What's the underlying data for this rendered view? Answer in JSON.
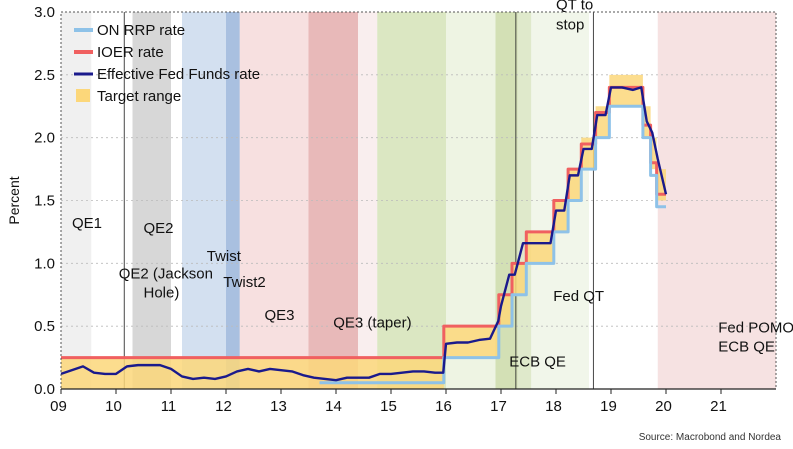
{
  "chart_data": {
    "type": "line",
    "ylabel": "Percent",
    "ylim": [
      0,
      3.0
    ],
    "yticks": [
      "0.0",
      "0.5",
      "1.0",
      "1.5",
      "2.0",
      "2.5",
      "3.0"
    ],
    "xlim": [
      2009,
      2022
    ],
    "xticks": [
      {
        "x": 2009,
        "label": "09"
      },
      {
        "x": 2010,
        "label": "10"
      },
      {
        "x": 2011,
        "label": "11"
      },
      {
        "x": 2012,
        "label": "12"
      },
      {
        "x": 2013,
        "label": "13"
      },
      {
        "x": 2014,
        "label": "14"
      },
      {
        "x": 2015,
        "label": "15"
      },
      {
        "x": 2016,
        "label": "16"
      },
      {
        "x": 2017,
        "label": "17"
      },
      {
        "x": 2018,
        "label": "18"
      },
      {
        "x": 2019,
        "label": "19"
      },
      {
        "x": 2020,
        "label": "20"
      },
      {
        "x": 2021,
        "label": "21"
      }
    ],
    "legend": [
      {
        "name": "ON RRP rate",
        "color": "#8ec2e8",
        "kind": "line"
      },
      {
        "name": "IOER rate",
        "color": "#f06060",
        "kind": "line"
      },
      {
        "name": "Effective Fed Funds rate",
        "color": "#1a1a8c",
        "kind": "line"
      },
      {
        "name": "Target range",
        "color": "#fcd77a",
        "kind": "area"
      }
    ],
    "legend_position": "top-left",
    "regions": [
      {
        "x0": 2009.0,
        "x1": 2009.55,
        "color": "#e6e6e6",
        "opacity": 0.6
      },
      {
        "x0": 2010.3,
        "x1": 2011.0,
        "color": "#bdbdbd",
        "opacity": 0.6
      },
      {
        "x0": 2011.2,
        "x1": 2012.0,
        "color": "#b6cce6",
        "opacity": 0.6
      },
      {
        "x0": 2012.0,
        "x1": 2012.25,
        "color": "#6f96cc",
        "opacity": 0.6
      },
      {
        "x0": 2012.25,
        "x1": 2013.5,
        "color": "#f2cccc",
        "opacity": 0.6
      },
      {
        "x0": 2013.5,
        "x1": 2014.4,
        "color": "#d98a8a",
        "opacity": 0.6
      },
      {
        "x0": 2014.4,
        "x1": 2014.75,
        "color": "#f5e3e3",
        "opacity": 0.6
      },
      {
        "x0": 2014.75,
        "x1": 2016.0,
        "color": "#c3d79a",
        "opacity": 0.6
      },
      {
        "x0": 2016.0,
        "x1": 2016.9,
        "color": "#e2ecd0",
        "opacity": 0.6
      },
      {
        "x0": 2016.9,
        "x1": 2017.3,
        "color": "#b5cc84",
        "opacity": 0.6
      },
      {
        "x0": 2017.3,
        "x1": 2017.55,
        "color": "#c9dba8",
        "opacity": 0.6
      },
      {
        "x0": 2017.55,
        "x1": 2018.6,
        "color": "#e8f0dc",
        "opacity": 0.6
      },
      {
        "x0": 2019.85,
        "x1": 2022.0,
        "color": "#f0cfcf",
        "opacity": 0.6
      }
    ],
    "vlines": [
      2010.15,
      2017.27,
      2018.68
    ],
    "annotations": [
      {
        "text": "QE1",
        "x": 2009.2,
        "y": 1.28
      },
      {
        "text": "QE2",
        "x": 2010.5,
        "y": 1.24
      },
      {
        "text": "QE2 (Jackson",
        "x": 2010.05,
        "y": 0.88
      },
      {
        "text": "Hole)",
        "x": 2010.5,
        "y": 0.73
      },
      {
        "text": "Twist",
        "x": 2011.65,
        "y": 1.02
      },
      {
        "text": "Twist2",
        "x": 2011.95,
        "y": 0.81
      },
      {
        "text": "QE3",
        "x": 2012.7,
        "y": 0.55
      },
      {
        "text": "QE3 (taper)",
        "x": 2013.95,
        "y": 0.49
      },
      {
        "text": "ECB QE",
        "x": 2017.15,
        "y": 0.18
      },
      {
        "text": "Fed QT",
        "x": 2017.95,
        "y": 0.7
      },
      {
        "text": "QT to",
        "x": 2018.0,
        "y": 3.02
      },
      {
        "text": "stop",
        "x": 2018.0,
        "y": 2.86
      },
      {
        "text": "Fed POMOs",
        "x": 2020.95,
        "y": 0.45
      },
      {
        "text": "ECB QE",
        "x": 2020.95,
        "y": 0.3
      }
    ],
    "series": [
      {
        "name": "Target range",
        "type": "band",
        "x": [
          2009.0,
          2015.96,
          2015.96,
          2016.96,
          2016.96,
          2017.2,
          2017.2,
          2017.46,
          2017.46,
          2017.96,
          2017.96,
          2018.22,
          2018.22,
          2018.46,
          2018.46,
          2018.72,
          2018.72,
          2018.97,
          2018.97,
          2019.58,
          2019.58,
          2019.72,
          2019.72,
          2019.83,
          2019.83,
          2020.0
        ],
        "low": [
          0,
          0,
          0.25,
          0.25,
          0.5,
          0.5,
          0.75,
          0.75,
          1.0,
          1.0,
          1.25,
          1.25,
          1.5,
          1.5,
          1.75,
          1.75,
          2.0,
          2.0,
          2.25,
          2.25,
          2.0,
          2.0,
          1.75,
          1.75,
          1.5,
          1.5
        ],
        "high": [
          0.25,
          0.25,
          0.5,
          0.5,
          0.75,
          0.75,
          1.0,
          1.0,
          1.25,
          1.25,
          1.5,
          1.5,
          1.75,
          1.75,
          2.0,
          2.0,
          2.25,
          2.25,
          2.5,
          2.5,
          2.25,
          2.25,
          2.0,
          2.0,
          1.75,
          1.75
        ]
      },
      {
        "name": "IOER rate",
        "x": [
          2009.0,
          2015.96,
          2015.96,
          2016.96,
          2016.96,
          2017.2,
          2017.2,
          2017.46,
          2017.46,
          2017.96,
          2017.96,
          2018.22,
          2018.22,
          2018.46,
          2018.46,
          2018.72,
          2018.72,
          2018.97,
          2018.97,
          2019.58,
          2019.58,
          2019.72,
          2019.72,
          2019.83,
          2019.83,
          2020.0
        ],
        "y": [
          0.25,
          0.25,
          0.5,
          0.5,
          0.75,
          0.75,
          1.0,
          1.0,
          1.25,
          1.25,
          1.5,
          1.5,
          1.75,
          1.75,
          1.95,
          1.95,
          2.2,
          2.2,
          2.4,
          2.4,
          2.1,
          2.1,
          1.8,
          1.8,
          1.55,
          1.55
        ]
      },
      {
        "name": "ON RRP rate",
        "x": [
          2013.7,
          2015.96,
          2015.96,
          2016.96,
          2016.96,
          2017.2,
          2017.2,
          2017.46,
          2017.46,
          2017.96,
          2017.96,
          2018.22,
          2018.22,
          2018.46,
          2018.46,
          2018.72,
          2018.72,
          2018.97,
          2018.97,
          2019.58,
          2019.58,
          2019.72,
          2019.72,
          2019.83,
          2019.83,
          2020.0
        ],
        "y": [
          0.05,
          0.05,
          0.25,
          0.25,
          0.5,
          0.5,
          0.75,
          0.75,
          1.0,
          1.0,
          1.25,
          1.25,
          1.5,
          1.5,
          1.75,
          1.75,
          2.0,
          2.0,
          2.25,
          2.25,
          2.0,
          2.0,
          1.7,
          1.7,
          1.45,
          1.45
        ]
      },
      {
        "name": "Effective Fed Funds rate",
        "x": [
          2009.0,
          2009.2,
          2009.4,
          2009.6,
          2009.8,
          2010.0,
          2010.2,
          2010.4,
          2010.6,
          2010.8,
          2011.0,
          2011.2,
          2011.4,
          2011.6,
          2011.8,
          2012.0,
          2012.2,
          2012.4,
          2012.6,
          2012.8,
          2013.0,
          2013.2,
          2013.4,
          2013.6,
          2013.8,
          2014.0,
          2014.2,
          2014.4,
          2014.6,
          2014.8,
          2015.0,
          2015.2,
          2015.4,
          2015.6,
          2015.8,
          2015.95,
          2016.0,
          2016.2,
          2016.4,
          2016.6,
          2016.8,
          2016.95,
          2017.0,
          2017.15,
          2017.25,
          2017.4,
          2017.5,
          2017.7,
          2017.9,
          2018.0,
          2018.15,
          2018.25,
          2018.4,
          2018.5,
          2018.65,
          2018.75,
          2018.9,
          2019.0,
          2019.2,
          2019.4,
          2019.55,
          2019.65,
          2019.75,
          2019.85,
          2020.0
        ],
        "y": [
          0.12,
          0.15,
          0.18,
          0.13,
          0.12,
          0.12,
          0.18,
          0.19,
          0.19,
          0.19,
          0.16,
          0.1,
          0.08,
          0.09,
          0.08,
          0.1,
          0.14,
          0.16,
          0.14,
          0.16,
          0.15,
          0.14,
          0.11,
          0.09,
          0.08,
          0.07,
          0.09,
          0.09,
          0.09,
          0.12,
          0.12,
          0.13,
          0.14,
          0.14,
          0.13,
          0.13,
          0.36,
          0.37,
          0.37,
          0.39,
          0.4,
          0.54,
          0.66,
          0.91,
          0.91,
          1.16,
          1.16,
          1.16,
          1.16,
          1.42,
          1.42,
          1.7,
          1.7,
          1.91,
          1.91,
          2.18,
          2.18,
          2.4,
          2.4,
          2.38,
          2.4,
          2.13,
          2.04,
          1.83,
          1.55
        ]
      }
    ]
  },
  "source": "Source: Macrobond and Nordea",
  "colors": {
    "frame": "#555555",
    "grid": "#bbbbbb",
    "text": "#111111"
  }
}
